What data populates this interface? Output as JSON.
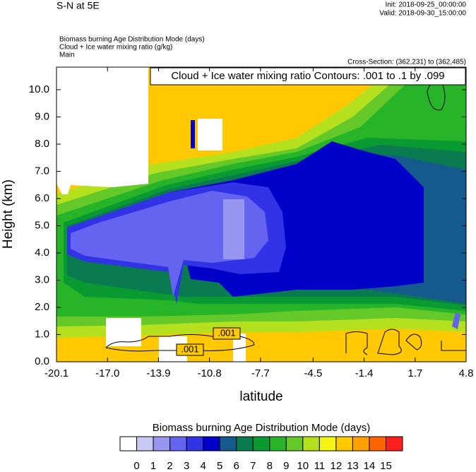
{
  "chart_data": {
    "type": "contour",
    "title": "S-N at 5E",
    "init": "Init: 2018-09-25_00:00:00",
    "valid": "Valid: 2018-09-30_15:00:00",
    "fields": [
      "Biomass burning Age Distribution Mode   (days)",
      "Cloud + Ice water mixing ratio   (g/kg)",
      "Main"
    ],
    "cross_section": "Cross-Section: (362,231) to (362,485)",
    "annotation": "Cloud + Ice water mixing ratio Contours: .001 to .1 by .099",
    "contour_labels": [
      ".001",
      ".001"
    ],
    "xlabel": "latitude",
    "ylabel": "Height (km)",
    "xlim": [
      -20.1,
      4.8
    ],
    "xticks": [
      -20.1,
      {
        "value": -17,
        "label": "-17.0"
      },
      -13.9,
      -10.8,
      -7.7,
      -4.5,
      -1.4,
      1.7,
      4.8
    ],
    "ylim": [
      0,
      10.83
    ],
    "yticks": [
      {
        "value": 0,
        "label": "0.0"
      },
      {
        "value": 1,
        "label": "1.0"
      },
      {
        "value": 2,
        "label": "2.0"
      },
      {
        "value": 3,
        "label": "3.0"
      },
      {
        "value": 4,
        "label": "4.0"
      },
      {
        "value": 5,
        "label": "5.0"
      },
      {
        "value": 6,
        "label": "6.0"
      },
      {
        "value": 7,
        "label": "7.0"
      },
      {
        "value": 8,
        "label": "8.0"
      },
      {
        "value": 9,
        "label": "9.0"
      },
      {
        "value": 10,
        "label": "10.0"
      }
    ],
    "colorbar": {
      "title": "Biomass burning Age Distribution Mode  (days)",
      "levels": [
        0,
        1,
        2,
        3,
        4,
        5,
        6,
        7,
        8,
        9,
        10,
        11,
        12,
        13,
        14,
        15
      ],
      "colors": [
        "#ffffff",
        "#c8c8f5",
        "#9696f0",
        "#6464f0",
        "#3232e6",
        "#0000c8",
        "#145a8c",
        "#0a7a50",
        "#0a9a32",
        "#28b428",
        "#64c828",
        "#b4e01e",
        "#f5f514",
        "#ffc800",
        "#ffa000",
        "#ff6400",
        "#ff1e1e"
      ]
    }
  }
}
